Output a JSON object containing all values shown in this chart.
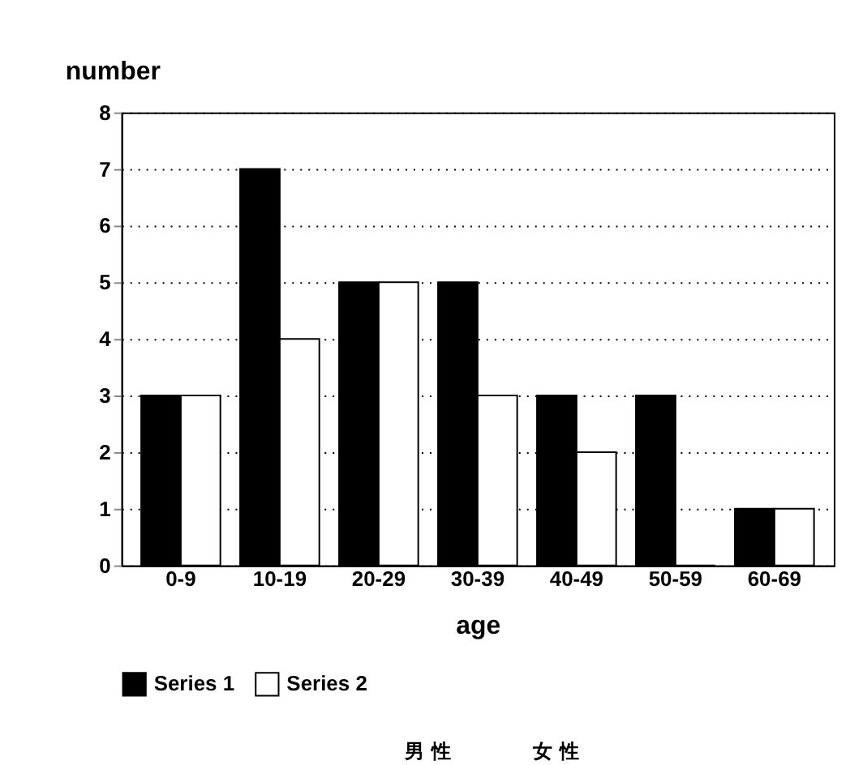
{
  "chart_data": {
    "type": "bar",
    "xlabel": "age",
    "ylabel": "number",
    "categories": [
      "0-9",
      "10-19",
      "20-29",
      "30-39",
      "40-49",
      "50-59",
      "60-69"
    ],
    "series": [
      {
        "name": "Series 1",
        "color": "#000000",
        "values": [
          3,
          7,
          5,
          5,
          3,
          3,
          1
        ]
      },
      {
        "name": "Series 2",
        "color": "#ffffff",
        "values": [
          3,
          4,
          5,
          3,
          2,
          0,
          1
        ]
      }
    ],
    "ylim": [
      0,
      8
    ],
    "yticks": [
      0,
      1,
      2,
      3,
      4,
      5,
      6,
      7,
      8
    ],
    "grid": "y",
    "legend": "bottom",
    "annotations": [
      "男 性",
      "女 性"
    ]
  }
}
